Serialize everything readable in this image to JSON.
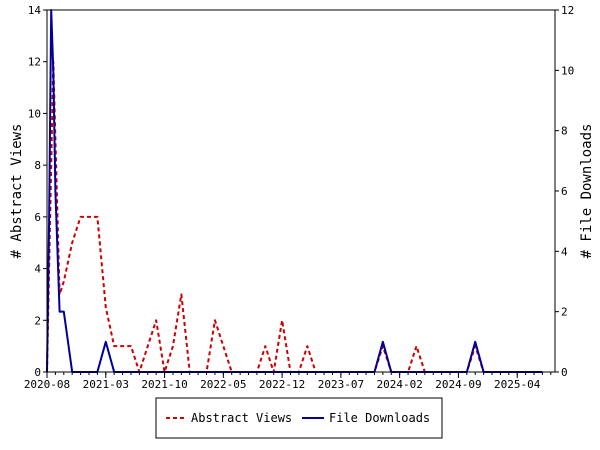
{
  "chart_data": {
    "type": "line",
    "x_tick_labels": [
      "2020-08",
      "2021-03",
      "2021-10",
      "2022-05",
      "2022-12",
      "2023-07",
      "2024-02",
      "2024-09",
      "2025-04"
    ],
    "y_left": {
      "label": "# Abstract Views",
      "range": [
        0,
        14
      ],
      "ticks": [
        0,
        2,
        4,
        6,
        8,
        10,
        12,
        14
      ]
    },
    "y_right": {
      "label": "# File Downloads",
      "range": [
        0,
        12
      ],
      "ticks": [
        0,
        2,
        4,
        6,
        8,
        10,
        12
      ]
    },
    "legend": {
      "placement": "bottom-center"
    },
    "series": [
      {
        "name": "Abstract Views",
        "axis": "left",
        "color": "#cc0000",
        "style": "dashed",
        "points": [
          [
            "2020-08",
            0
          ],
          [
            "2020-08",
            4
          ],
          [
            "2020-08",
            8
          ],
          [
            "2020-08",
            12
          ],
          [
            "2020-09",
            9
          ],
          [
            "2020-09",
            3
          ],
          [
            "2020-10",
            3.5
          ],
          [
            "2020-11",
            5
          ],
          [
            "2020-12",
            6
          ],
          [
            "2021-01",
            6
          ],
          [
            "2021-02",
            6
          ],
          [
            "2021-03",
            2.5
          ],
          [
            "2021-04",
            1
          ],
          [
            "2021-05",
            1
          ],
          [
            "2021-06",
            1
          ],
          [
            "2021-07",
            0
          ],
          [
            "2021-08",
            1
          ],
          [
            "2021-09",
            2
          ],
          [
            "2021-10",
            0
          ],
          [
            "2021-11",
            1
          ],
          [
            "2021-12",
            3
          ],
          [
            "2022-01",
            0
          ],
          [
            "2022-02",
            0
          ],
          [
            "2022-03",
            0
          ],
          [
            "2022-04",
            2
          ],
          [
            "2022-05",
            1
          ],
          [
            "2022-06",
            0
          ],
          [
            "2022-07",
            0
          ],
          [
            "2022-08",
            0
          ],
          [
            "2022-09",
            0
          ],
          [
            "2022-10",
            1
          ],
          [
            "2022-11",
            0
          ],
          [
            "2022-12",
            2
          ],
          [
            "2023-01",
            0
          ],
          [
            "2023-02",
            0
          ],
          [
            "2023-03",
            1
          ],
          [
            "2023-04",
            0
          ],
          [
            "2023-05",
            0
          ],
          [
            "2023-06",
            0
          ],
          [
            "2023-07",
            0
          ],
          [
            "2023-08",
            0
          ],
          [
            "2023-09",
            0
          ],
          [
            "2023-10",
            0
          ],
          [
            "2023-11",
            0
          ],
          [
            "2023-12",
            1
          ],
          [
            "2024-01",
            0
          ],
          [
            "2024-02",
            0
          ],
          [
            "2024-03",
            0
          ],
          [
            "2024-04",
            1
          ],
          [
            "2024-05",
            0
          ],
          [
            "2024-06",
            0
          ],
          [
            "2024-07",
            0
          ],
          [
            "2024-08",
            0
          ],
          [
            "2024-09",
            0
          ],
          [
            "2024-10",
            0
          ],
          [
            "2024-11",
            1
          ],
          [
            "2024-12",
            0
          ],
          [
            "2025-01",
            0
          ],
          [
            "2025-02",
            0
          ],
          [
            "2025-03",
            0
          ],
          [
            "2025-04",
            0
          ],
          [
            "2025-05",
            0
          ],
          [
            "2025-06",
            0
          ],
          [
            "2025-07",
            0
          ]
        ]
      },
      {
        "name": "File Downloads",
        "axis": "right",
        "color": "#000099",
        "style": "solid",
        "points": [
          [
            "2020-08",
            0
          ],
          [
            "2020-08",
            5
          ],
          [
            "2020-08",
            12
          ],
          [
            "2020-08",
            10
          ],
          [
            "2020-09",
            6
          ],
          [
            "2020-09",
            2
          ],
          [
            "2020-10",
            2
          ],
          [
            "2020-11",
            0
          ],
          [
            "2020-12",
            0
          ],
          [
            "2021-01",
            0
          ],
          [
            "2021-02",
            0
          ],
          [
            "2021-03",
            1
          ],
          [
            "2021-04",
            0
          ],
          [
            "2021-05",
            0
          ],
          [
            "2021-06",
            0
          ],
          [
            "2021-07",
            0
          ],
          [
            "2021-08",
            0
          ],
          [
            "2021-09",
            0
          ],
          [
            "2021-10",
            0
          ],
          [
            "2021-11",
            0
          ],
          [
            "2021-12",
            0
          ],
          [
            "2022-01",
            0
          ],
          [
            "2022-02",
            0
          ],
          [
            "2022-03",
            0
          ],
          [
            "2022-04",
            0
          ],
          [
            "2022-05",
            0
          ],
          [
            "2022-06",
            0
          ],
          [
            "2022-07",
            0
          ],
          [
            "2022-08",
            0
          ],
          [
            "2022-09",
            0
          ],
          [
            "2022-10",
            0
          ],
          [
            "2022-11",
            0
          ],
          [
            "2022-12",
            0
          ],
          [
            "2023-01",
            0
          ],
          [
            "2023-02",
            0
          ],
          [
            "2023-03",
            0
          ],
          [
            "2023-04",
            0
          ],
          [
            "2023-05",
            0
          ],
          [
            "2023-06",
            0
          ],
          [
            "2023-07",
            0
          ],
          [
            "2023-08",
            0
          ],
          [
            "2023-09",
            0
          ],
          [
            "2023-10",
            0
          ],
          [
            "2023-11",
            0
          ],
          [
            "2023-12",
            1
          ],
          [
            "2024-01",
            0
          ],
          [
            "2024-02",
            0
          ],
          [
            "2024-03",
            0
          ],
          [
            "2024-04",
            0
          ],
          [
            "2024-05",
            0
          ],
          [
            "2024-06",
            0
          ],
          [
            "2024-07",
            0
          ],
          [
            "2024-08",
            0
          ],
          [
            "2024-09",
            0
          ],
          [
            "2024-10",
            0
          ],
          [
            "2024-11",
            1
          ],
          [
            "2024-12",
            0
          ],
          [
            "2025-01",
            0
          ],
          [
            "2025-02",
            0
          ],
          [
            "2025-03",
            0
          ],
          [
            "2025-04",
            0
          ],
          [
            "2025-05",
            0
          ],
          [
            "2025-06",
            0
          ],
          [
            "2025-07",
            0
          ]
        ]
      }
    ]
  }
}
